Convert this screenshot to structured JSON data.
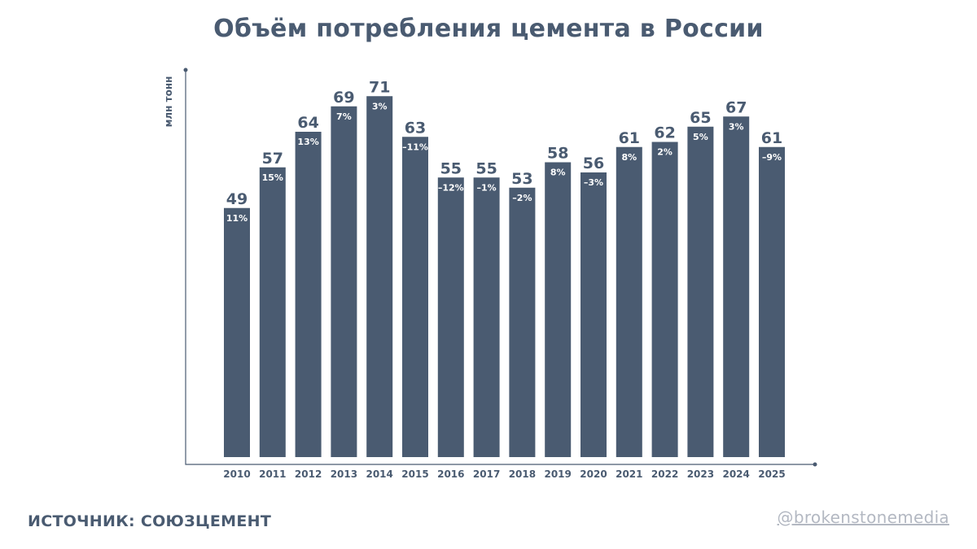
{
  "title": "Объём потребления цемента в России",
  "source_text": "ИСТОЧНИК: СОЮЗЦЕМЕНТ",
  "handle": "@brokenstonemedia",
  "colors": {
    "bar": "#4a5b71",
    "text": "#4a5b71",
    "handle": "#b3b8c2"
  },
  "chart_data": {
    "type": "bar",
    "ylabel": "млн тонн",
    "xlabel": "",
    "ylim": [
      0,
      80
    ],
    "grid": false,
    "categories": [
      "2010",
      "2011",
      "2012",
      "2013",
      "2014",
      "2015",
      "2016",
      "2017",
      "2018",
      "2019",
      "2020",
      "2021",
      "2022",
      "2023",
      "2024",
      "2025"
    ],
    "values": [
      49,
      57,
      64,
      69,
      71,
      63,
      55,
      55,
      53,
      58,
      56,
      61,
      62,
      65,
      67,
      61
    ],
    "change_labels": [
      "11%",
      "15%",
      "13%",
      "7%",
      "3%",
      "–11%",
      "–12%",
      "–1%",
      "–2%",
      "8%",
      "–3%",
      "8%",
      "2%",
      "5%",
      "3%",
      "–9%"
    ]
  }
}
